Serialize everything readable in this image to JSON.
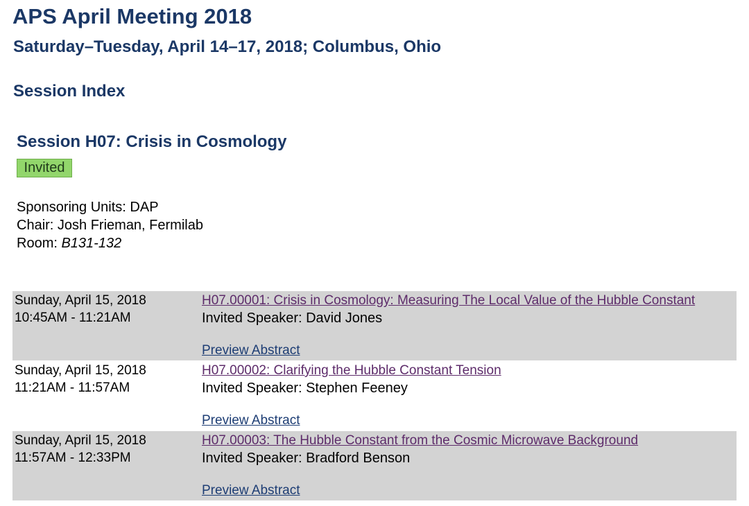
{
  "header": {
    "meeting_title": "APS April Meeting 2018",
    "meeting_subtitle": "Saturday–Tuesday, April 14–17, 2018; Columbus, Ohio",
    "session_index_label": "Session Index"
  },
  "session": {
    "title": "Session H07: Crisis in Cosmology",
    "badge": "Invited",
    "sponsoring_units": "Sponsoring Units: DAP",
    "chair": "Chair: Josh Frieman, Fermilab",
    "room_label": "Room: ",
    "room_value": "B131-132"
  },
  "talks": [
    {
      "date": "Sunday, April 15, 2018",
      "time": "10:45AM - 11:21AM",
      "title": "H07.00001: Crisis in Cosmology: Measuring The Local Value of the Hubble Constant",
      "speaker": "Invited Speaker: David Jones",
      "abstract_link": "Preview Abstract"
    },
    {
      "date": "Sunday, April 15, 2018",
      "time": "11:21AM - 11:57AM",
      "title": "H07.00002: Clarifying the Hubble Constant Tension",
      "speaker": "Invited Speaker: Stephen Feeney",
      "abstract_link": "Preview Abstract"
    },
    {
      "date": "Sunday, April 15, 2018",
      "time": "11:57AM - 12:33PM",
      "title": "H07.00003: The Hubble Constant from the Cosmic Microwave Background",
      "speaker": "Invited Speaker: Bradford Benson",
      "abstract_link": "Preview Abstract"
    }
  ],
  "colors": {
    "heading": "#1b3866",
    "badge_bg": "#92d66b",
    "row_shade": "#d3d3d3",
    "visited_link": "#5d2b6a",
    "link": "#1d3d74"
  }
}
